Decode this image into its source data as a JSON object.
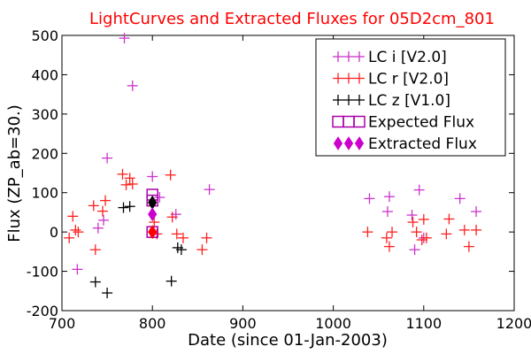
{
  "chart_data": {
    "type": "scatter",
    "title": "LightCurves and Extracted Fluxes for 05D2cm_801",
    "title_color": "#ff0000",
    "xlabel": "Date (since 01-Jan-2003)",
    "ylabel": "Flux (ZP_ab=30.)",
    "xlim": [
      700,
      1200
    ],
    "ylim": [
      -200,
      500
    ],
    "xticks": [
      "700",
      "800",
      "900",
      "1000",
      "1100",
      "1200"
    ],
    "yticks": [
      "-200",
      "-100",
      "0",
      "100",
      "200",
      "300",
      "400",
      "500"
    ],
    "legend_position": "top-right",
    "series": [
      {
        "name": "LC i [V2.0]",
        "marker": "plus",
        "color": "#cc33cc",
        "points": [
          [
            717,
            -95
          ],
          [
            740,
            10
          ],
          [
            746,
            30
          ],
          [
            750,
            188
          ],
          [
            769,
            493
          ],
          [
            778,
            372
          ],
          [
            800,
            141
          ],
          [
            808,
            88
          ],
          [
            826,
            45
          ],
          [
            863,
            108
          ],
          [
            1040,
            85
          ],
          [
            1060,
            52
          ],
          [
            1062,
            90
          ],
          [
            1087,
            43
          ],
          [
            1090,
            -45
          ],
          [
            1095,
            107
          ],
          [
            1100,
            -15
          ],
          [
            1140,
            85
          ],
          [
            1158,
            52
          ]
        ]
      },
      {
        "name": "LC r [V2.0]",
        "marker": "plus",
        "color": "#ff2020",
        "points": [
          [
            708,
            -15
          ],
          [
            712,
            40
          ],
          [
            715,
            5
          ],
          [
            718,
            0
          ],
          [
            735,
            67
          ],
          [
            737,
            -45
          ],
          [
            745,
            53
          ],
          [
            748,
            80
          ],
          [
            767,
            147
          ],
          [
            771,
            120
          ],
          [
            775,
            137
          ],
          [
            778,
            122
          ],
          [
            802,
            25
          ],
          [
            805,
            -5
          ],
          [
            820,
            145
          ],
          [
            822,
            38
          ],
          [
            827,
            -5
          ],
          [
            834,
            -15
          ],
          [
            855,
            -45
          ],
          [
            860,
            -15
          ],
          [
            1038,
            0
          ],
          [
            1059,
            -15
          ],
          [
            1062,
            -37
          ],
          [
            1065,
            0
          ],
          [
            1088,
            25
          ],
          [
            1092,
            0
          ],
          [
            1098,
            -20
          ],
          [
            1100,
            32
          ],
          [
            1103,
            -15
          ],
          [
            1125,
            -5
          ],
          [
            1128,
            33
          ],
          [
            1145,
            5
          ],
          [
            1150,
            -37
          ],
          [
            1158,
            5
          ]
        ]
      },
      {
        "name": "LC z [V1.0]",
        "marker": "plus",
        "color": "#000000",
        "points": [
          [
            737,
            -127
          ],
          [
            750,
            -155
          ],
          [
            768,
            62
          ],
          [
            775,
            65
          ],
          [
            821,
            -125
          ],
          [
            828,
            -40
          ],
          [
            832,
            -45
          ]
        ]
      },
      {
        "name": "Expected Flux",
        "marker": "square",
        "color": "#aa00aa",
        "points": [
          [
            800,
            95
          ],
          [
            800,
            80
          ],
          [
            800,
            0
          ]
        ]
      },
      {
        "name": "Extracted Flux",
        "marker": "diamond",
        "color": "#cc00cc",
        "points": [
          [
            800,
            75
          ],
          [
            800,
            45
          ],
          [
            800,
            0
          ]
        ],
        "point_colors": [
          "#000000",
          "#cc00cc",
          "#ff0000"
        ]
      }
    ]
  }
}
